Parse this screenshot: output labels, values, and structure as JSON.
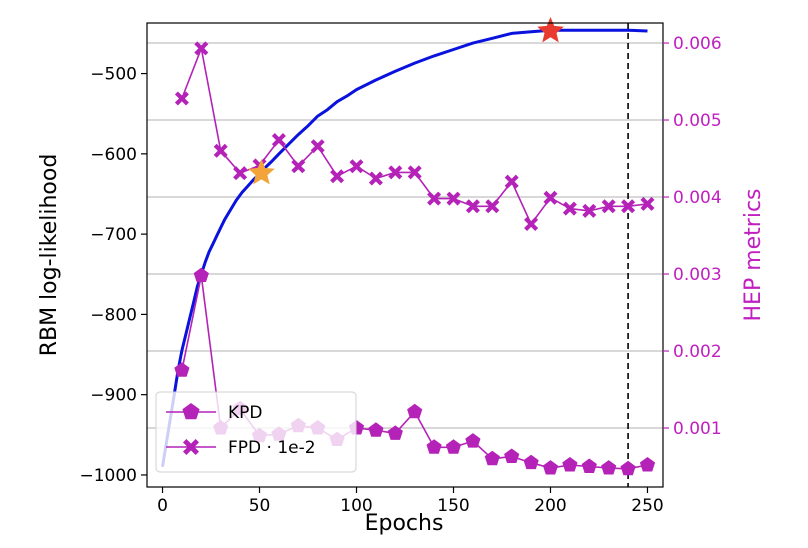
{
  "chart_data": {
    "type": "line",
    "xlabel": "Epochs",
    "ylabel_left": "RBM log-likelihood",
    "ylabel_right": "HEP metrics",
    "xlim": [
      -8,
      258
    ],
    "ylim_left": [
      -1015,
      -437
    ],
    "ylim_right": [
      0.000234,
      0.00626
    ],
    "x_ticks": [
      0,
      50,
      100,
      150,
      200,
      250
    ],
    "y_left_ticks": [
      -500,
      -600,
      -700,
      -800,
      -900,
      -1000
    ],
    "y_right_ticks": [
      0.001,
      0.002,
      0.003,
      0.004,
      0.005,
      0.006
    ],
    "x_tick_labels": [
      "0",
      "50",
      "100",
      "150",
      "200",
      "250"
    ],
    "y_left_tick_labels": [
      "−500",
      "−600",
      "−700",
      "−800",
      "−900",
      "−1000"
    ],
    "y_right_tick_labels": [
      "0.001",
      "0.002",
      "0.003",
      "0.004",
      "0.005",
      "0.006"
    ],
    "grid": "horizontal-right-axis",
    "vline_x": 240,
    "colors": {
      "llh": "#0a12dd",
      "hep": "#b422b8",
      "right_axis": "#c020c0",
      "star_red": "#e83a2f",
      "star_orange": "#f2a43a"
    },
    "series": [
      {
        "name": "",
        "axis": "left",
        "x": [
          0,
          2,
          4,
          6,
          8,
          10,
          12,
          14,
          16,
          18,
          20,
          22,
          24,
          26,
          28,
          30,
          32,
          35,
          38,
          41,
          44,
          47,
          50,
          53,
          56,
          60,
          65,
          70,
          75,
          80,
          85,
          90,
          95,
          100,
          110,
          120,
          130,
          140,
          150,
          160,
          170,
          180,
          190,
          195,
          200,
          210,
          220,
          230,
          240,
          250
        ],
        "y": [
          -990,
          -960,
          -930,
          -900,
          -870,
          -845,
          -825,
          -805,
          -785,
          -765,
          -750,
          -735,
          -722,
          -712,
          -702,
          -692,
          -682,
          -670,
          -658,
          -648,
          -640,
          -632,
          -625,
          -617,
          -610,
          -600,
          -588,
          -576,
          -565,
          -553,
          -545,
          -535,
          -528,
          -520,
          -508,
          -497,
          -487,
          -478,
          -470,
          -462,
          -456,
          -450,
          -448,
          -447,
          -446,
          -446,
          -446,
          -446,
          -446,
          -447
        ]
      },
      {
        "name": "KPD",
        "axis": "right",
        "marker": "pentagon",
        "x": [
          10,
          20,
          30,
          40,
          50,
          60,
          70,
          80,
          90,
          100,
          110,
          120,
          130,
          140,
          150,
          160,
          170,
          180,
          190,
          200,
          210,
          220,
          230,
          240,
          250
        ],
        "y": [
          0.00175,
          0.00298,
          0.001,
          0.00125,
          0.0009,
          0.00092,
          0.00103,
          0.001,
          0.00085,
          0.001,
          0.00097,
          0.00093,
          0.00121,
          0.00075,
          0.00075,
          0.00083,
          0.0006,
          0.00063,
          0.00055,
          0.00048,
          0.00052,
          0.0005,
          0.00048,
          0.00047,
          0.00052
        ]
      },
      {
        "name": "FPD · 1e-2",
        "axis": "right",
        "marker": "X",
        "x": [
          10,
          20,
          30,
          40,
          50,
          60,
          70,
          80,
          90,
          100,
          110,
          120,
          130,
          140,
          150,
          160,
          170,
          180,
          190,
          200,
          210,
          220,
          230,
          240,
          250
        ],
        "y": [
          0.00528,
          0.00593,
          0.0046,
          0.00431,
          0.00441,
          0.00474,
          0.0044,
          0.00466,
          0.00427,
          0.0044,
          0.00424,
          0.00432,
          0.00432,
          0.00398,
          0.00398,
          0.00388,
          0.00388,
          0.0042,
          0.00365,
          0.00399,
          0.00385,
          0.00382,
          0.00388,
          0.00388,
          0.00391
        ]
      }
    ],
    "stars": [
      {
        "x": 200,
        "y": -447,
        "axis": "left",
        "color": "#e83a2f"
      },
      {
        "x": 51,
        "y": -624,
        "axis": "left",
        "color": "#f2a43a"
      }
    ],
    "legend": {
      "placement": "lower-left",
      "entries": [
        "KPD",
        "FPD · 1e-2"
      ]
    }
  }
}
